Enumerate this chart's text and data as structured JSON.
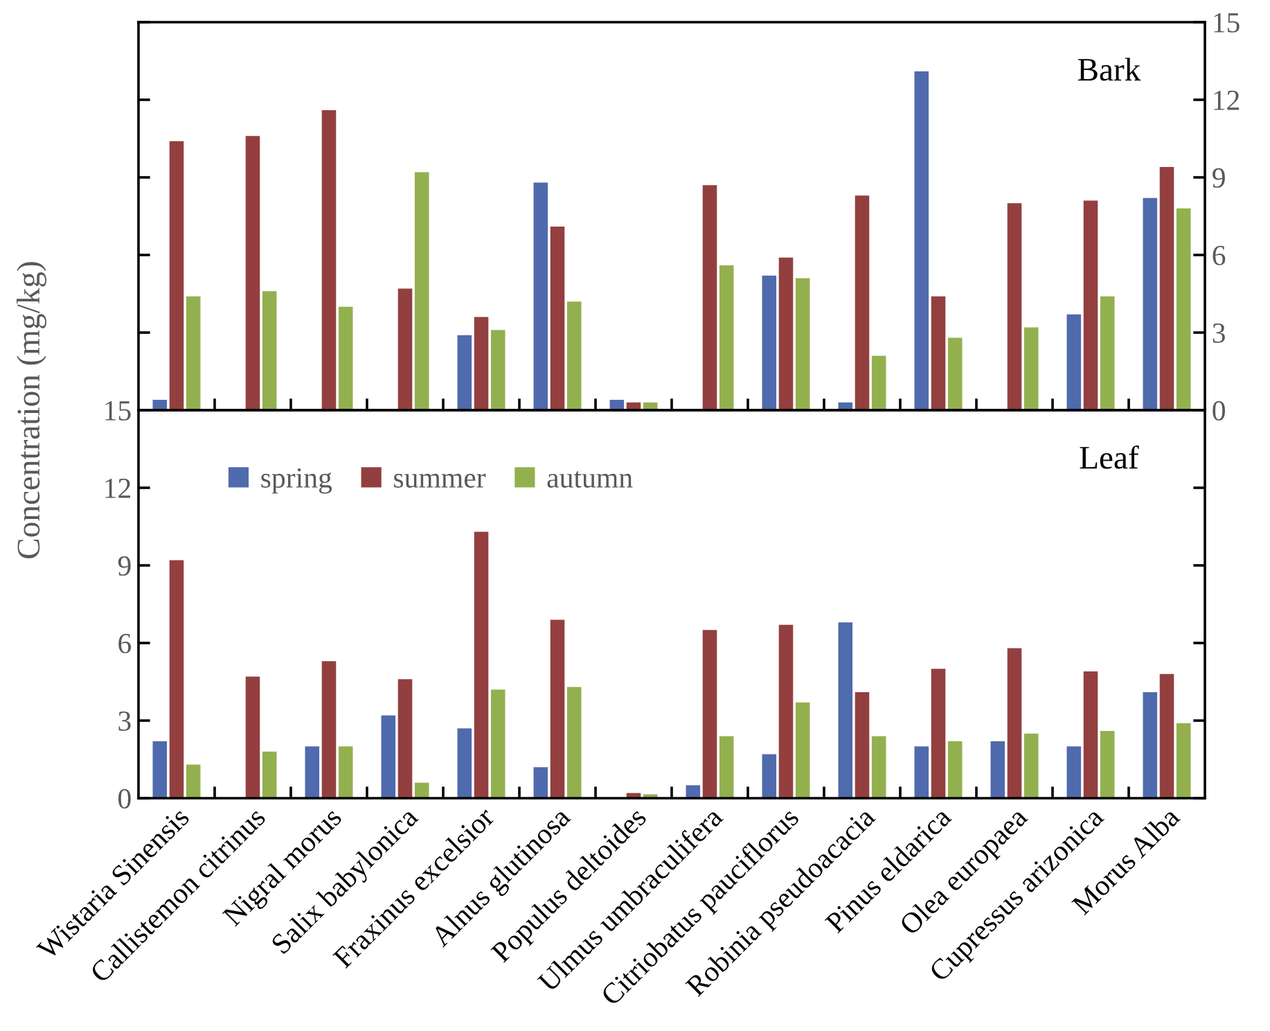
{
  "chart_data": [
    {
      "type": "bar",
      "categories": [
        null,
        null,
        null,
        null,
        null,
        null,
        null,
        null,
        null,
        null,
        null,
        null,
        null,
        null
      ],
      "series": [
        {
          "name": "spring",
          "color": "#4f6aad",
          "values": [
            0.4,
            0,
            0,
            0,
            2.9,
            8.8,
            0.4,
            null,
            5.2,
            0.3,
            13.1,
            null,
            3.7,
            8.2
          ]
        },
        {
          "name": "summer",
          "color": "#943f3f",
          "values": [
            10.4,
            10.6,
            11.6,
            4.7,
            3.6,
            7.1,
            0.3,
            8.7,
            5.9,
            8.3,
            4.4,
            8.0,
            8.1,
            9.4
          ]
        },
        {
          "name": "autumn",
          "color": "#93b04f",
          "values": [
            4.4,
            4.6,
            4.0,
            9.2,
            3.1,
            4.2,
            0.3,
            5.6,
            5.1,
            2.1,
            2.8,
            3.2,
            4.4,
            7.8
          ]
        }
      ],
      "ylim": [
        0,
        15
      ],
      "yticks": [
        0,
        3,
        6,
        9,
        12,
        15
      ],
      "tick_labels": "y",
      "legend": "bottom",
      "grid": false,
      "annotations": [
        "Bark"
      ]
    },
    {
      "type": "bar",
      "categories": [
        "Wistaria Sinensis",
        "Callistemon citrinus",
        "Nigral morus",
        "Salix babylonica",
        "Fraxinus excelsior",
        "Alnus glutinosa",
        "Populus deltoides",
        "Ulmus umbraculifera",
        "Citriobatus pauciflorus",
        "Robinia pseudoacacia",
        "Pinus eldarica",
        "Olea europaea",
        "Cupressus arizonica",
        "Morus Alba"
      ],
      "series": [
        {
          "color": "#4f6aad",
          "values": [
            2.2,
            0,
            2.0,
            3.2,
            2.7,
            1.2,
            0,
            0.5,
            1.7,
            6.8,
            2.0,
            2.2,
            2.0,
            4.1
          ]
        },
        {
          "color": "#943f3f",
          "values": [
            9.2,
            4.7,
            5.3,
            4.6,
            10.3,
            6.9,
            0.2,
            6.5,
            6.7,
            4.1,
            5.0,
            5.8,
            4.9,
            4.8
          ]
        },
        {
          "color": "#93b04f",
          "values": [
            1.3,
            1.8,
            2.0,
            0.6,
            4.2,
            4.3,
            0.15,
            2.4,
            3.7,
            2.4,
            2.2,
            2.5,
            2.6,
            2.9
          ]
        }
      ],
      "ylim": [
        0,
        15
      ],
      "yticks": [
        0,
        3,
        6,
        9,
        12,
        15
      ],
      "ylabel": "Concentration (mg/kg)",
      "grid": false,
      "annotations": [
        "Leaf"
      ]
    }
  ]
}
